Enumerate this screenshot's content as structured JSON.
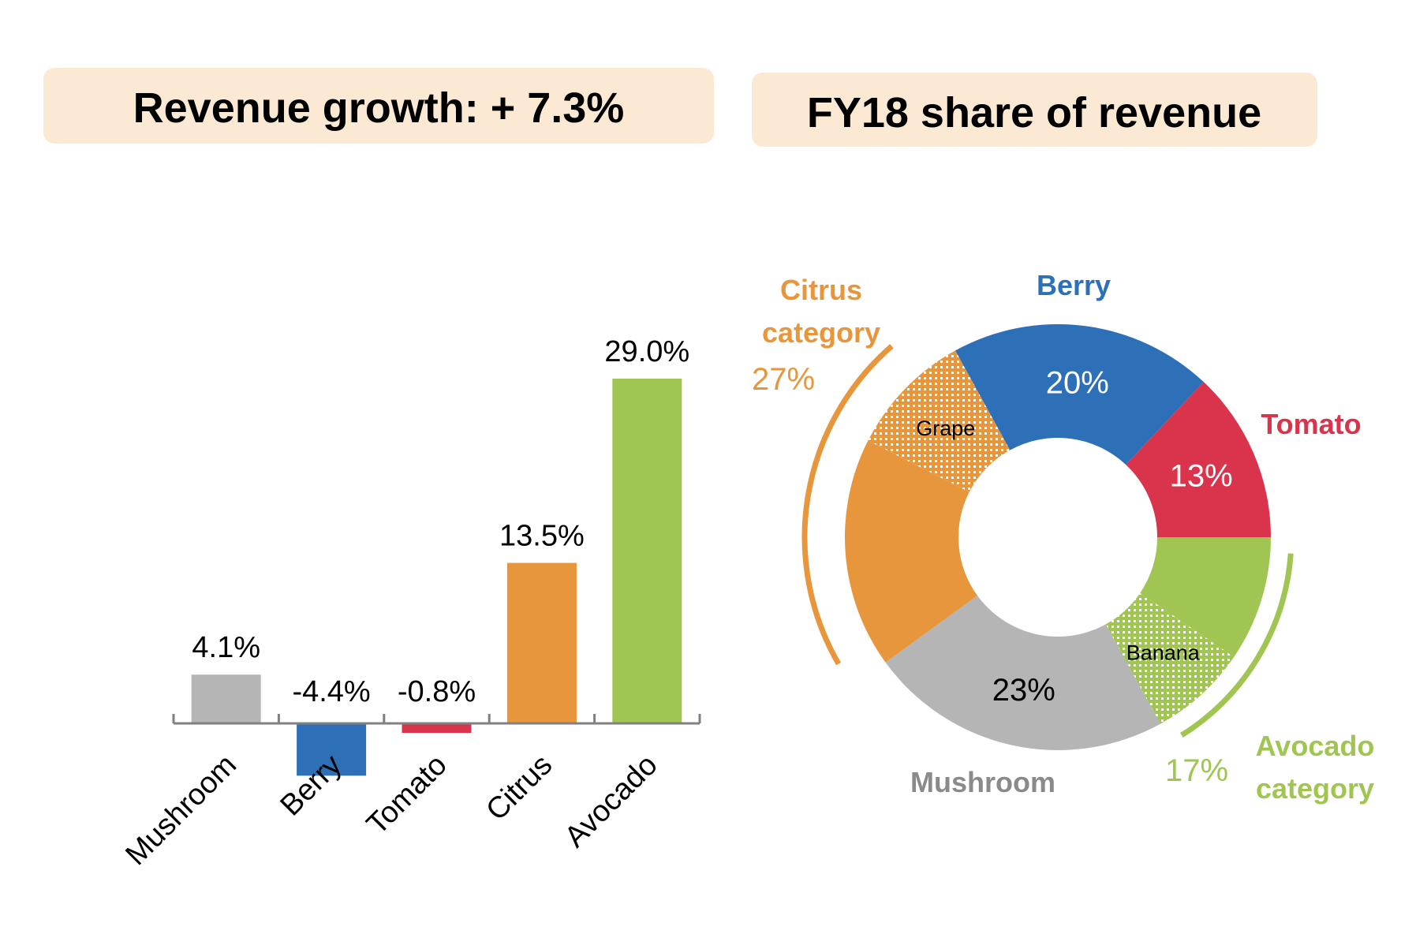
{
  "left_panel": {
    "title": "Revenue growth: + 7.3%"
  },
  "right_panel": {
    "title": "FY18 share of revenue"
  },
  "colors": {
    "header_bg": "#fbe9d4",
    "mushroom": "#b5b5b5",
    "berry": "#2e70b8",
    "tomato": "#d9344c",
    "citrus": "#e8963c",
    "avocado": "#a0c552",
    "axis": "#808080"
  },
  "chart_data": [
    {
      "type": "bar",
      "categories": [
        "Mushroom",
        "Berry",
        "Tomato",
        "Citrus",
        "Avocado"
      ],
      "values": [
        4.1,
        -4.4,
        -0.8,
        13.5,
        29.0
      ],
      "data_labels": [
        "4.1%",
        "-4.4%",
        "-0.8%",
        "13.5%",
        "29.0%"
      ],
      "colors": [
        "#b5b5b5",
        "#2e70b8",
        "#d9344c",
        "#e8963c",
        "#a0c552"
      ],
      "title": "Revenue growth: + 7.3%",
      "grid": false
    },
    {
      "type": "pie",
      "subtype": "donut",
      "title": "FY18 share of revenue",
      "slices": [
        {
          "name": "Berry",
          "value": 20,
          "label": "20%",
          "color": "#2e70b8",
          "pattern": false
        },
        {
          "name": "Tomato",
          "value": 13,
          "label": "13%",
          "color": "#d9344c",
          "pattern": false
        },
        {
          "name": "Avocado",
          "value": 9.5,
          "label": "",
          "color": "#a0c552",
          "pattern": false
        },
        {
          "name": "Banana",
          "value": 7.5,
          "label": "Banana",
          "color": "#a0c552",
          "pattern": true
        },
        {
          "name": "Mushroom",
          "value": 23,
          "label": "23%",
          "color": "#b5b5b5",
          "pattern": false
        },
        {
          "name": "Citrus",
          "value": 17.5,
          "label": "",
          "color": "#e8963c",
          "pattern": false
        },
        {
          "name": "Grape",
          "value": 9.5,
          "label": "Grape",
          "color": "#e8963c",
          "pattern": true
        }
      ],
      "outer_labels": {
        "berry": "Berry",
        "tomato": "Tomato",
        "mushroom": "Mushroom"
      },
      "groups": [
        {
          "name_line1": "Citrus",
          "name_line2": "category",
          "value": "27%",
          "color": "#e8963c"
        },
        {
          "name_line1": "Avocado",
          "name_line2": "category",
          "value": "17%",
          "color": "#a0c552"
        }
      ]
    }
  ]
}
